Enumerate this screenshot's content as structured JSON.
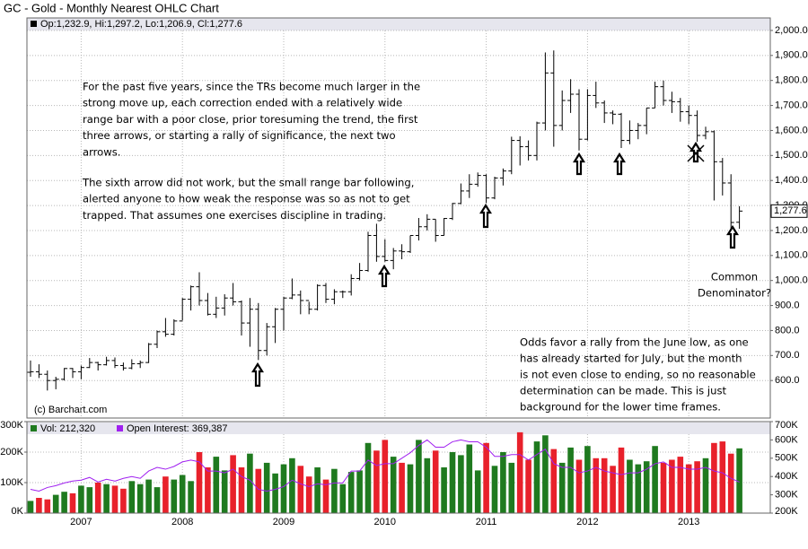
{
  "chart_data": [
    {
      "type": "ohlc",
      "title": "GC - Gold - Monthly Nearest OHLC Chart",
      "legend": "Op:1,232.9, Hi:1,297.2, Lo:1,206.9, Cl:1,277.6",
      "credit": "(c) Barchart.com",
      "last_close_label": "1,277.6",
      "color": "#000000",
      "categories": [
        null,
        null,
        null,
        null,
        null,
        null,
        "2007",
        null,
        null,
        null,
        null,
        null,
        null,
        null,
        null,
        null,
        null,
        null,
        "2008",
        null,
        null,
        null,
        null,
        null,
        null,
        null,
        null,
        null,
        null,
        null,
        "2009",
        null,
        null,
        null,
        null,
        null,
        null,
        null,
        null,
        null,
        null,
        null,
        "2010",
        null,
        null,
        null,
        null,
        null,
        null,
        null,
        null,
        null,
        null,
        null,
        "2011",
        null,
        null,
        null,
        null,
        null,
        null,
        null,
        null,
        null,
        null,
        null,
        "2012",
        null,
        null,
        null,
        null,
        null,
        null,
        null,
        null,
        null,
        null,
        null,
        "2013",
        null,
        null,
        null,
        null,
        null,
        null
      ],
      "open": [
        633,
        635,
        625,
        600,
        605,
        648,
        635,
        652,
        672,
        663,
        680,
        660,
        650,
        667,
        672,
        745,
        795,
        785,
        838,
        925,
        975,
        920,
        865,
        890,
        930,
        915,
        830,
        885,
        720,
        815,
        885,
        930,
        942,
        920,
        885,
        980,
        925,
        955,
        955,
        1008,
        1040,
        1180,
        1096,
        1080,
        1118,
        1115,
        1180,
        1215,
        1245,
        1180,
        1248,
        1308,
        1358,
        1385,
        1420,
        1330,
        1410,
        1438,
        1560,
        1535,
        1500,
        1630,
        1830,
        1620,
        1720,
        1745,
        1565,
        1740,
        1710,
        1670,
        1665,
        1560,
        1600,
        1620,
        1690,
        1775,
        1720,
        1715,
        1675,
        1660,
        1580,
        1595,
        1475,
        1390,
        1232.9
      ],
      "high": [
        680,
        665,
        640,
        615,
        650,
        650,
        660,
        690,
        675,
        695,
        692,
        672,
        685,
        680,
        750,
        800,
        850,
        845,
        930,
        980,
        1033,
        950,
        935,
        945,
        990,
        920,
        930,
        910,
        830,
        890,
        935,
        1008,
        960,
        915,
        985,
        990,
        965,
        960,
        1025,
        1070,
        1195,
        1227,
        1165,
        1130,
        1145,
        1180,
        1250,
        1265,
        1245,
        1250,
        1310,
        1388,
        1425,
        1432,
        1425,
        1415,
        1448,
        1575,
        1577,
        1560,
        1635,
        1912,
        1920,
        1760,
        1805,
        1765,
        1765,
        1795,
        1720,
        1680,
        1670,
        1640,
        1630,
        1690,
        1795,
        1800,
        1755,
        1730,
        1700,
        1680,
        1615,
        1600,
        1490,
        1425,
        1297.2
      ],
      "low": [
        615,
        610,
        560,
        565,
        600,
        610,
        605,
        650,
        640,
        660,
        650,
        640,
        645,
        650,
        670,
        730,
        775,
        780,
        840,
        880,
        900,
        860,
        850,
        860,
        900,
        780,
        735,
        682,
        700,
        750,
        800,
        925,
        865,
        865,
        880,
        910,
        905,
        930,
        940,
        1000,
        1035,
        1075,
        1075,
        1045,
        1085,
        1110,
        1160,
        1200,
        1155,
        1180,
        1242,
        1305,
        1330,
        1375,
        1310,
        1325,
        1380,
        1425,
        1460,
        1480,
        1480,
        1600,
        1535,
        1600,
        1670,
        1520,
        1560,
        1690,
        1630,
        1625,
        1530,
        1545,
        1565,
        1585,
        1690,
        1700,
        1670,
        1635,
        1625,
        1555,
        1565,
        1320,
        1340,
        1180,
        1206.9
      ],
      "close": [
        635,
        625,
        600,
        605,
        648,
        635,
        652,
        672,
        663,
        680,
        660,
        650,
        667,
        672,
        745,
        795,
        785,
        838,
        925,
        975,
        920,
        865,
        890,
        930,
        915,
        830,
        885,
        720,
        815,
        885,
        930,
        942,
        920,
        885,
        980,
        925,
        955,
        955,
        1008,
        1040,
        1180,
        1096,
        1080,
        1118,
        1115,
        1180,
        1215,
        1245,
        1180,
        1248,
        1308,
        1358,
        1385,
        1420,
        1330,
        1410,
        1438,
        1560,
        1535,
        1500,
        1630,
        1830,
        1620,
        1720,
        1745,
        1565,
        1740,
        1710,
        1670,
        1665,
        1560,
        1600,
        1620,
        1690,
        1775,
        1720,
        1715,
        1675,
        1660,
        1580,
        1595,
        1475,
        1390,
        1232,
        1277.6
      ],
      "ylim": [
        450,
        2050
      ],
      "yticks": [
        {
          "value": 600,
          "label": "600.0"
        },
        {
          "value": 700,
          "label": "700.0"
        },
        {
          "value": 800,
          "label": "800.0"
        },
        {
          "value": 900,
          "label": "900.0"
        },
        {
          "value": 1000,
          "label": "1,000.0"
        },
        {
          "value": 1100,
          "label": "1,100.0"
        },
        {
          "value": 1200,
          "label": "1,200.0"
        },
        {
          "value": 1300,
          "label": "1,300.0"
        },
        {
          "value": 1400,
          "label": "1,400.0"
        },
        {
          "value": 1500,
          "label": "1,500.0"
        },
        {
          "value": 1600,
          "label": "1,600.0"
        },
        {
          "value": 1700,
          "label": "1,700.0"
        },
        {
          "value": 1800,
          "label": "1,800.0"
        },
        {
          "value": 1900,
          "label": "1,900.0"
        },
        {
          "value": 2000,
          "label": "2,000.0"
        }
      ],
      "grid": true,
      "annotations": [
        {
          "lines": [
            "For the past five years, since the TRs become much larger in the",
            "strong move up, each correction ended with a relatively wide",
            "range bar with a poor close, prior toresuming the trend, the first",
            "three arrows, or starting a rally of significance, the next two",
            "arrows."
          ]
        },
        {
          "lines": [
            "The sixth arrow did not work, but the small range bar following,",
            "alerted anyone to how weak the response was so as not to get",
            "trapped.  That assumes one exercises discipline in trading."
          ]
        },
        {
          "lines": [
            "Common",
            "Denominator?"
          ]
        },
        {
          "lines": [
            "Odds favor a rally from the June low, as one",
            "has already started for July, but the month",
            "is not even close to ending, so no reasonable",
            "determination can be made.  This is just",
            "background for the lower time frames."
          ]
        }
      ]
    },
    {
      "type": "bar",
      "series": [
        {
          "name": "Vol: 212,320",
          "color": "#1f7a1f",
          "down_color": "#e8212b",
          "values": [
            40000,
            50000,
            45000,
            60000,
            70000,
            65000,
            90000,
            85000,
            100000,
            95000,
            90000,
            80000,
            105000,
            95000,
            110000,
            85000,
            120000,
            110000,
            125000,
            105000,
            200000,
            150000,
            185000,
            140000,
            190000,
            150000,
            195000,
            145000,
            165000,
            130000,
            160000,
            180000,
            155000,
            120000,
            150000,
            110000,
            145000,
            95000,
            135000,
            140000,
            230000,
            205000,
            240000,
            185000,
            165000,
            160000,
            240000,
            180000,
            205000,
            150000,
            200000,
            190000,
            225000,
            140000,
            230000,
            155000,
            200000,
            165000,
            265000,
            175000,
            235000,
            255000,
            210000,
            165000,
            215000,
            175000,
            220000,
            180000,
            180000,
            155000,
            215000,
            175000,
            160000,
            170000,
            220000,
            165000,
            175000,
            185000,
            160000,
            170000,
            180000,
            230000,
            235000,
            195000,
            212320
          ]
        },
        {
          "name": "Open Interest: 369,387",
          "color": "#a020f0",
          "axis": "y2",
          "values": [
            330000,
            320000,
            340000,
            350000,
            365000,
            375000,
            380000,
            395000,
            370000,
            385000,
            375000,
            390000,
            400000,
            390000,
            430000,
            450000,
            440000,
            455000,
            480000,
            490000,
            480000,
            430000,
            430000,
            420000,
            440000,
            400000,
            380000,
            330000,
            320000,
            330000,
            345000,
            380000,
            360000,
            345000,
            360000,
            355000,
            365000,
            365000,
            430000,
            430000,
            490000,
            460000,
            470000,
            470000,
            500000,
            530000,
            570000,
            600000,
            560000,
            560000,
            590000,
            600000,
            590000,
            590000,
            560000,
            510000,
            510000,
            520000,
            520000,
            490000,
            520000,
            550000,
            470000,
            450000,
            450000,
            420000,
            430000,
            450000,
            430000,
            420000,
            410000,
            420000,
            420000,
            440000,
            470000,
            480000,
            450000,
            450000,
            440000,
            440000,
            450000,
            430000,
            420000,
            390000,
            369387
          ]
        }
      ],
      "ylim": [
        0,
        300000
      ],
      "yticks": [
        {
          "value": 0,
          "label": "0K"
        },
        {
          "value": 100000,
          "label": "100K"
        },
        {
          "value": 200000,
          "label": "200K"
        },
        {
          "value": 300000,
          "label": "300K"
        }
      ],
      "y2lim": [
        200000,
        700000
      ],
      "y2ticks": [
        {
          "value": 200000,
          "label": "200K"
        },
        {
          "value": 300000,
          "label": "300K"
        },
        {
          "value": 400000,
          "label": "400K"
        },
        {
          "value": 500000,
          "label": "500K"
        },
        {
          "value": 600000,
          "label": "600K"
        },
        {
          "value": 700000,
          "label": "700K"
        }
      ],
      "grid": true
    }
  ]
}
